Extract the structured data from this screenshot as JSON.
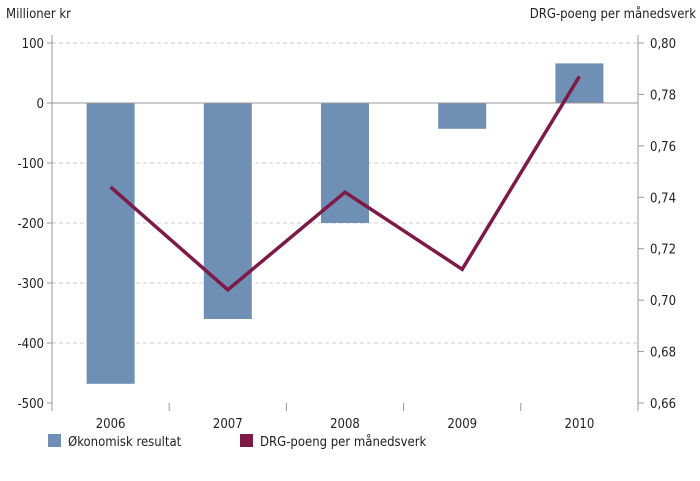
{
  "chart_data": {
    "type": "bar+line",
    "categories": [
      "2006",
      "2007",
      "2008",
      "2009",
      "2010"
    ],
    "left_axis": {
      "label": "Millioner kr",
      "range": [
        -500,
        100
      ],
      "ticks": [
        100,
        0,
        -100,
        -200,
        -300,
        -400,
        -500
      ],
      "tick_labels": [
        "100",
        "0",
        "-100",
        "-200",
        "-300",
        "-400",
        "-500"
      ]
    },
    "right_axis": {
      "label": "DRG-poeng  per månedsverk",
      "range": [
        0.66,
        0.8
      ],
      "ticks": [
        0.8,
        0.78,
        0.76,
        0.74,
        0.72,
        0.7,
        0.68,
        0.66
      ],
      "tick_labels": [
        "0,80",
        "0,78",
        "0,76",
        "0,74",
        "0,72",
        "0,70",
        "0,68",
        "0,66"
      ]
    },
    "series": [
      {
        "name": "Økonomisk resultat",
        "type": "bar",
        "axis": "left",
        "color": "#6f8fb5",
        "values": [
          -468,
          -360,
          -200,
          -43,
          66
        ]
      },
      {
        "name": "DRG-poeng  per månedsverk",
        "type": "line",
        "axis": "right",
        "color": "#7d1a48",
        "values": [
          0.744,
          0.704,
          0.742,
          0.712,
          0.787
        ]
      }
    ],
    "grid": "horizontal dashed",
    "legend": "bottom-left"
  }
}
